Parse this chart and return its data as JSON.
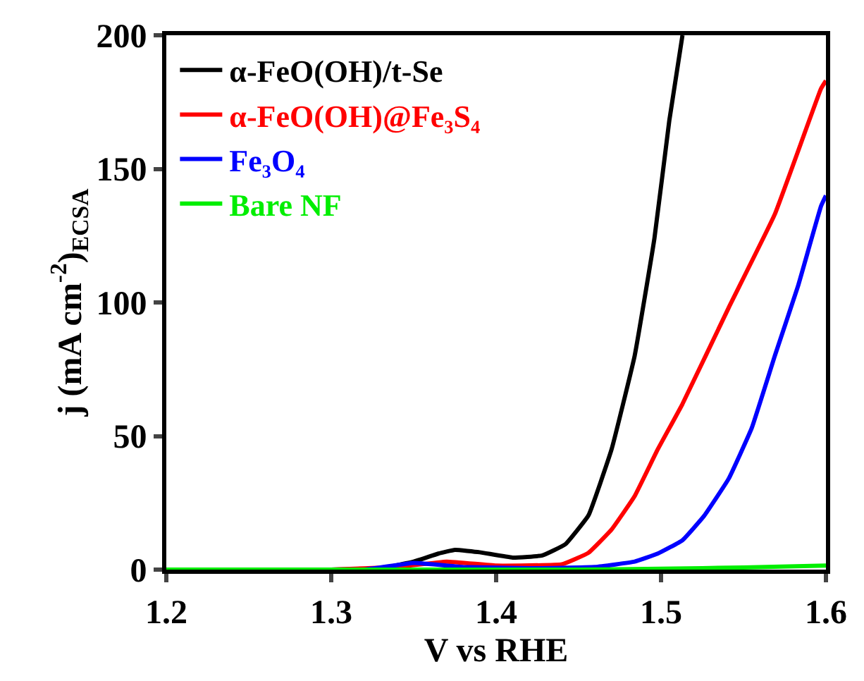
{
  "chart_data": {
    "type": "line",
    "xlabel": "V vs RHE",
    "ylabel": "j (mA cm$^{-2}$)$_{ECSA}$",
    "xlim": [
      1.2,
      1.6
    ],
    "ylim": [
      0,
      200
    ],
    "xticks": [
      1.2,
      1.3,
      1.4,
      1.5,
      1.6
    ],
    "yticks": [
      0,
      50,
      100,
      150,
      200
    ],
    "legend": "top left",
    "series": [
      {
        "name": "α-FeO(OH)/t-Se",
        "color": "#000000",
        "x": [
          1.2,
          1.3,
          1.33,
          1.35,
          1.365,
          1.375,
          1.39,
          1.41,
          1.428,
          1.442,
          1.456,
          1.47,
          1.484,
          1.496,
          1.505,
          1.513
        ],
        "values": [
          0,
          0,
          0.5,
          3,
          6,
          7.4,
          6.5,
          4.5,
          5.3,
          9.5,
          20.3,
          45,
          80,
          124,
          168,
          200
        ]
      },
      {
        "name": "α-FeO(OH)@Fe₃S₄",
        "color": "#ff0000",
        "x": [
          1.2,
          1.3,
          1.34,
          1.37,
          1.4,
          1.44,
          1.456,
          1.47,
          1.484,
          1.498,
          1.513,
          1.541,
          1.569,
          1.597,
          1.6
        ],
        "values": [
          0,
          0,
          1,
          3,
          1.5,
          2,
          6.3,
          15,
          27.5,
          45,
          62,
          98,
          133,
          180,
          183
        ]
      },
      {
        "name": "Fe₃O₄",
        "color": "#0000ff",
        "x": [
          1.2,
          1.32,
          1.35,
          1.38,
          1.42,
          1.46,
          1.484,
          1.498,
          1.513,
          1.526,
          1.541,
          1.555,
          1.569,
          1.583,
          1.597,
          1.6
        ],
        "values": [
          0,
          0,
          2.5,
          1,
          0.5,
          1,
          3,
          6,
          11,
          20,
          34,
          53,
          80,
          106,
          136,
          140
        ]
      },
      {
        "name": "Bare NF",
        "color": "#00ee00",
        "x": [
          1.2,
          1.45,
          1.5,
          1.55,
          1.6
        ],
        "values": [
          0,
          0,
          0.3,
          0.8,
          1.5
        ]
      }
    ]
  }
}
